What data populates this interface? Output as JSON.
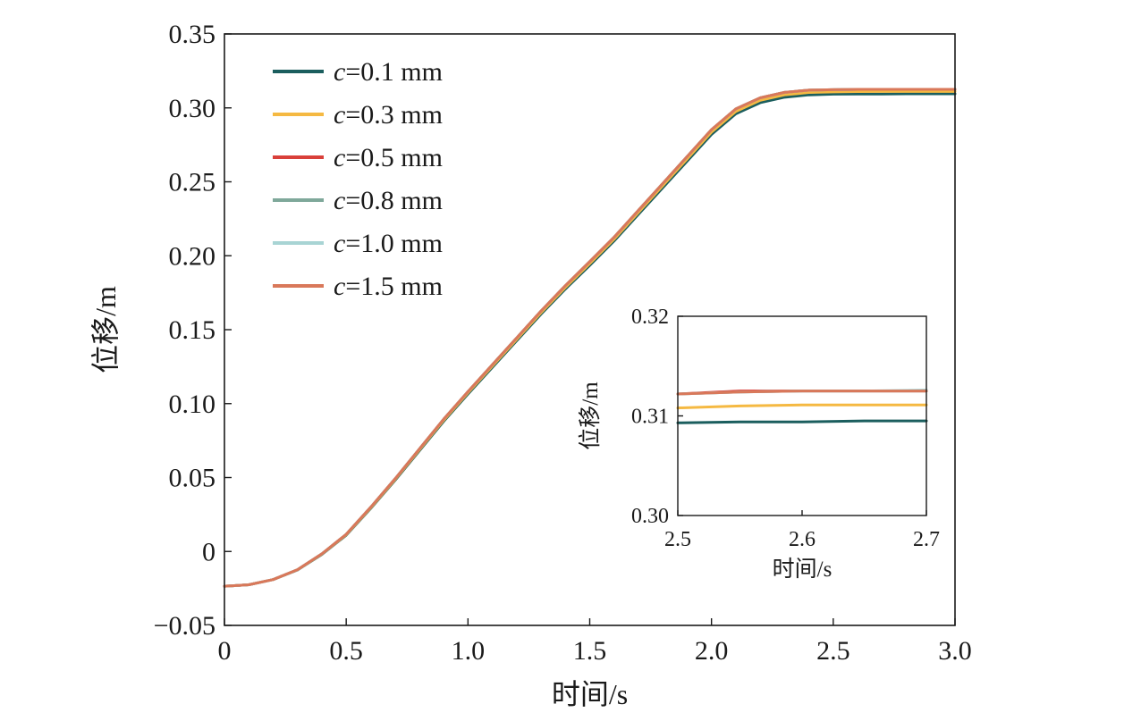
{
  "chart_data": [
    {
      "type": "line",
      "xlabel": "时间/s",
      "ylabel": "位移/m",
      "xlim": [
        0,
        3.0
      ],
      "ylim": [
        -0.05,
        0.35
      ],
      "xticks": [
        "0",
        "0.5",
        "1.0",
        "1.5",
        "2.0",
        "2.5",
        "3.0"
      ],
      "yticks": [
        "−0.05",
        "0",
        "0.05",
        "0.10",
        "0.15",
        "0.20",
        "0.25",
        "0.30",
        "0.35"
      ],
      "grid": false,
      "legend_position": "top-left",
      "x": [
        0,
        0.1,
        0.2,
        0.3,
        0.4,
        0.5,
        0.6,
        0.7,
        0.8,
        0.9,
        1.0,
        1.1,
        1.2,
        1.3,
        1.4,
        1.5,
        1.6,
        1.7,
        1.8,
        1.9,
        2.0,
        2.1,
        2.2,
        2.3,
        2.4,
        2.5,
        2.6,
        2.7,
        2.8,
        2.9,
        3.0
      ],
      "series": [
        {
          "name": "c=0.1 mm",
          "name_italic": "c",
          "name_rest": "=0.1 mm",
          "color": "#1b5e5e",
          "values": [
            -0.0235,
            -0.0225,
            -0.019,
            -0.0125,
            -0.002,
            0.011,
            0.029,
            0.048,
            0.068,
            0.088,
            0.1065,
            0.1245,
            0.1425,
            0.1605,
            0.1775,
            0.1935,
            0.21,
            0.228,
            0.246,
            0.264,
            0.282,
            0.296,
            0.3035,
            0.3072,
            0.3088,
            0.3093,
            0.3094,
            0.3094,
            0.3095,
            0.3095,
            0.3095
          ]
        },
        {
          "name": "c=0.3 mm",
          "name_italic": "c",
          "name_rest": "=0.3 mm",
          "color": "#f5b942",
          "values": [
            -0.0235,
            -0.0225,
            -0.019,
            -0.0124,
            -0.0018,
            0.0113,
            0.0294,
            0.0485,
            0.0686,
            0.0887,
            0.1073,
            0.1254,
            0.1434,
            0.1615,
            0.1786,
            0.1947,
            0.2112,
            0.2293,
            0.2474,
            0.2655,
            0.2836,
            0.2976,
            0.3051,
            0.3088,
            0.3104,
            0.3108,
            0.311,
            0.3111,
            0.3111,
            0.3111,
            0.3111
          ]
        },
        {
          "name": "c=0.5 mm",
          "name_italic": "c",
          "name_rest": "=0.5 mm",
          "color": "#d9403a",
          "values": [
            -0.0235,
            -0.0225,
            -0.019,
            -0.0123,
            -0.0016,
            0.0116,
            0.0298,
            0.049,
            0.0692,
            0.0894,
            0.1081,
            0.1263,
            0.1444,
            0.1626,
            0.1798,
            0.196,
            0.2125,
            0.2307,
            0.2489,
            0.2671,
            0.2853,
            0.2993,
            0.3068,
            0.3105,
            0.312,
            0.3123,
            0.3125,
            0.3125,
            0.3125,
            0.3125,
            0.3125
          ]
        },
        {
          "name": "c=0.8 mm",
          "name_italic": "c",
          "name_rest": "=0.8 mm",
          "color": "#7fa89a",
          "values": [
            -0.0235,
            -0.0225,
            -0.019,
            -0.0123,
            -0.0016,
            0.0116,
            0.0298,
            0.049,
            0.0692,
            0.0894,
            0.1081,
            0.1263,
            0.1444,
            0.1626,
            0.1798,
            0.196,
            0.2125,
            0.2307,
            0.2489,
            0.2671,
            0.2853,
            0.2993,
            0.3068,
            0.3105,
            0.312,
            0.3123,
            0.3125,
            0.3125,
            0.3125,
            0.3125,
            0.3125
          ]
        },
        {
          "name": "c=1.0 mm",
          "name_italic": "c",
          "name_rest": "=1.0 mm",
          "color": "#a8d4d4",
          "values": [
            -0.0235,
            -0.0225,
            -0.019,
            -0.0123,
            -0.0016,
            0.0116,
            0.0298,
            0.049,
            0.0692,
            0.0894,
            0.1081,
            0.1263,
            0.1444,
            0.1626,
            0.1798,
            0.196,
            0.2125,
            0.2307,
            0.2489,
            0.2671,
            0.2853,
            0.2993,
            0.3068,
            0.3105,
            0.312,
            0.3123,
            0.3125,
            0.3125,
            0.3125,
            0.3125,
            0.3125
          ]
        },
        {
          "name": "c=1.5 mm",
          "name_italic": "c",
          "name_rest": "=1.5 mm",
          "color": "#d9785a",
          "values": [
            -0.0235,
            -0.0225,
            -0.019,
            -0.0123,
            -0.0016,
            0.0116,
            0.0298,
            0.049,
            0.0692,
            0.0894,
            0.1081,
            0.1263,
            0.1444,
            0.1626,
            0.1798,
            0.196,
            0.2125,
            0.2307,
            0.2489,
            0.2671,
            0.2853,
            0.2993,
            0.3068,
            0.3105,
            0.312,
            0.3123,
            0.3125,
            0.3125,
            0.3125,
            0.3125,
            0.3125
          ]
        }
      ]
    },
    {
      "type": "line",
      "xlabel": "时间/s",
      "ylabel": "位移/m",
      "xlim": [
        2.5,
        2.7
      ],
      "ylim": [
        0.3,
        0.32
      ],
      "xticks": [
        "2.5",
        "2.6",
        "2.7"
      ],
      "yticks": [
        "0.30",
        "0.31",
        "0.32"
      ],
      "grid": false,
      "x": [
        2.5,
        2.55,
        2.6,
        2.65,
        2.7
      ],
      "series": [
        {
          "name": "c=0.1 mm",
          "color": "#1b5e5e",
          "values": [
            0.3093,
            0.3094,
            0.3094,
            0.3095,
            0.3095
          ]
        },
        {
          "name": "c=0.3 mm",
          "color": "#f5b942",
          "values": [
            0.3108,
            0.311,
            0.3111,
            0.3111,
            0.3111
          ]
        },
        {
          "name": "c=0.5 mm",
          "color": "#d9403a",
          "values": [
            0.3122,
            0.3125,
            0.3125,
            0.3125,
            0.3125
          ]
        },
        {
          "name": "c=0.8 mm",
          "color": "#7fa89a",
          "values": [
            0.3122,
            0.3124,
            0.3125,
            0.3125,
            0.3125
          ]
        },
        {
          "name": "c=1.0 mm",
          "color": "#a8d4d4",
          "values": [
            0.3122,
            0.3124,
            0.3125,
            0.3125,
            0.3126
          ]
        },
        {
          "name": "c=1.5 mm",
          "color": "#d9785a",
          "values": [
            0.3122,
            0.3124,
            0.3125,
            0.3125,
            0.3125
          ]
        }
      ]
    }
  ]
}
